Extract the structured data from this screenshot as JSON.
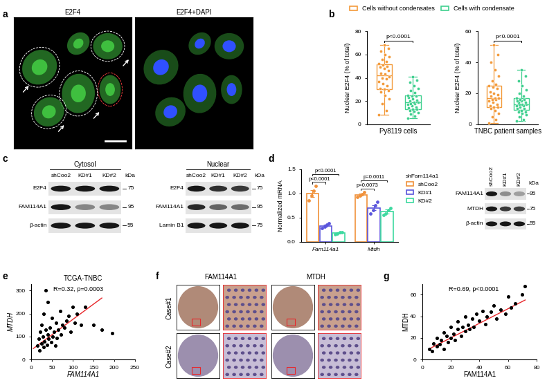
{
  "panel_labels": [
    "a",
    "b",
    "c",
    "d",
    "e",
    "f",
    "g"
  ],
  "panel_a": {
    "images": [
      "E2F4",
      "E2F4+DAPI"
    ]
  },
  "chart_data": [
    {
      "type": "box",
      "ylabel": "Nuclear E2F4 (% of total)",
      "xlabel": "Py8119 cells",
      "ylim": [
        0,
        80
      ],
      "yticks": [
        0,
        20,
        40,
        60,
        80
      ],
      "legend": "upper center",
      "annotation": "p<0.0001",
      "series": [
        {
          "name": "Cells without condensates",
          "color": "#f39a3a",
          "values": [
            8,
            12,
            18,
            22,
            25,
            28,
            29,
            30,
            31,
            33,
            35,
            37,
            39,
            40,
            41,
            43,
            44,
            46,
            48,
            49,
            50,
            51,
            52,
            54,
            56,
            58,
            60,
            63,
            65,
            68
          ]
        },
        {
          "name": "Cells with condensate",
          "color": "#3ecf8e",
          "values": [
            5,
            7,
            9,
            10,
            11,
            12,
            13,
            13,
            14,
            15,
            16,
            17,
            18,
            18,
            19,
            19,
            20,
            21,
            22,
            23,
            24,
            24,
            25,
            27,
            29,
            31,
            33,
            36,
            38,
            41
          ]
        }
      ]
    },
    {
      "type": "box",
      "ylabel": "Nuclear E2F4 (% of total)",
      "xlabel": "TNBC patient samples",
      "ylim": [
        0,
        60
      ],
      "yticks": [
        0,
        20,
        40,
        60
      ],
      "annotation": "p<0.0001",
      "series": [
        {
          "color": "#f39a3a",
          "values": [
            1,
            3,
            5,
            7,
            9,
            10,
            11,
            11,
            12,
            13,
            14,
            15,
            16,
            16,
            17,
            17,
            18,
            19,
            20,
            21,
            23,
            24,
            25,
            26,
            28,
            31,
            35,
            40,
            45,
            51
          ]
        },
        {
          "color": "#3ecf8e",
          "values": [
            2,
            3,
            5,
            6,
            7,
            8,
            8,
            9,
            10,
            10,
            11,
            12,
            12,
            13,
            13,
            13,
            14,
            14,
            15,
            15,
            16,
            16,
            17,
            18,
            20,
            22,
            25,
            28,
            31,
            35
          ]
        }
      ]
    },
    {
      "type": "bar",
      "ylabel": "Normalized mRNA",
      "categories": [
        "Fam114a1",
        "Mtdh"
      ],
      "ylim": [
        0,
        1.5
      ],
      "yticks": [
        {
          "value": 0,
          "label": "0.0"
        },
        {
          "value": 0.5,
          "label": "0.5"
        },
        {
          "value": 1.0,
          "label": "1.0"
        },
        {
          "value": 1.5,
          "label": "1.5"
        }
      ],
      "legend": "upper left",
      "legend_title": "shFam114a1",
      "series": [
        {
          "name": "shCoo2",
          "color": "#f0913a",
          "values": [
            1.0,
            0.97
          ],
          "errors": [
            0.07,
            0.02
          ],
          "points": [
            [
              0.85,
              0.95,
              1.05,
              1.15
            ],
            [
              0.93,
              0.95,
              0.98,
              1.02
            ]
          ]
        },
        {
          "name": "KD#1",
          "color": "#5a55dc",
          "values": [
            0.33,
            0.7
          ],
          "errors": [
            0.02,
            0.05
          ],
          "points": [
            [
              0.28,
              0.31,
              0.35,
              0.38
            ],
            [
              0.58,
              0.65,
              0.75,
              0.82
            ]
          ]
        },
        {
          "name": "KD#2",
          "color": "#3dd9a0",
          "values": [
            0.18,
            0.62
          ],
          "errors": [
            0.01,
            0.04
          ],
          "points": [
            [
              0.16,
              0.17,
              0.19,
              0.2
            ],
            [
              0.55,
              0.58,
              0.65,
              0.7
            ]
          ]
        }
      ],
      "comparisons": [
        {
          "category": "Fam114a1",
          "pair": [
            "shCoo2",
            "KD#1"
          ],
          "label": "p<0.0001"
        },
        {
          "category": "Fam114a1",
          "pair": [
            "shCoo2",
            "KD#2"
          ],
          "label": "p<0.0001"
        },
        {
          "category": "Mtdh",
          "pair": [
            "shCoo2",
            "KD#1"
          ],
          "label": "p=0.0073"
        },
        {
          "category": "Mtdh",
          "pair": [
            "shCoo2",
            "KD#2"
          ],
          "label": "p=0.0011"
        }
      ]
    },
    {
      "type": "scatter",
      "title": "TCGA-TNBC",
      "annotation": "R=0.32, p=0.0003",
      "xlabel": "FAM114A1",
      "ylabel": "MTDH",
      "x": [
        15,
        18,
        20,
        22,
        25,
        25,
        28,
        30,
        30,
        32,
        35,
        35,
        38,
        40,
        40,
        42,
        45,
        48,
        50,
        52,
        55,
        58,
        60,
        62,
        65,
        70,
        72,
        75,
        80,
        85,
        90,
        95,
        100,
        105,
        110,
        120,
        130,
        150,
        170,
        195
      ],
      "values": [
        60,
        90,
        40,
        120,
        70,
        150,
        100,
        55,
        200,
        80,
        130,
        300,
        65,
        110,
        250,
        90,
        140,
        75,
        180,
        100,
        120,
        60,
        160,
        95,
        130,
        210,
        110,
        150,
        140,
        170,
        190,
        120,
        230,
        160,
        200,
        150,
        230,
        150,
        130,
        115
      ],
      "fit": {
        "x": [
          5,
          170
        ],
        "values": [
          48,
          268
        ]
      },
      "xlim": [
        0,
        250
      ],
      "xticks": [
        0,
        50,
        100,
        150,
        200,
        250
      ],
      "ylim": [
        0,
        330
      ],
      "yticks": [
        0,
        100,
        200,
        300
      ]
    },
    {
      "type": "scatter",
      "annotation": "R=0.69, p<0.0001",
      "xlabel": "FAM114A1",
      "ylabel": "MTDH",
      "x": [
        5,
        7,
        8,
        10,
        10,
        12,
        13,
        15,
        15,
        17,
        18,
        20,
        20,
        22,
        23,
        25,
        25,
        27,
        28,
        30,
        30,
        32,
        33,
        35,
        36,
        38,
        40,
        42,
        44,
        45,
        48,
        50,
        52,
        55,
        58,
        60,
        62,
        65,
        70,
        72
      ],
      "values": [
        10,
        8,
        15,
        12,
        20,
        14,
        18,
        10,
        25,
        22,
        16,
        20,
        30,
        24,
        18,
        28,
        35,
        22,
        30,
        26,
        40,
        32,
        28,
        38,
        30,
        42,
        36,
        45,
        33,
        40,
        44,
        50,
        38,
        46,
        42,
        58,
        48,
        52,
        60,
        68
      ],
      "fit": {
        "x": [
          5,
          72
        ],
        "values": [
          10,
          55
        ]
      },
      "xlim": [
        0,
        80
      ],
      "xticks": [
        0,
        20,
        40,
        60,
        80
      ],
      "ylim": [
        0,
        70
      ],
      "yticks": [
        0,
        20,
        40,
        60
      ]
    }
  ],
  "panel_c": {
    "unit": "kDa",
    "blots": [
      {
        "title": "Cytosol",
        "lanes": [
          "shCoo2",
          "KD#1",
          "KD#2"
        ],
        "rows": [
          {
            "label": "E2F4",
            "kda": 75,
            "levels": [
              1,
              1,
              1
            ]
          },
          {
            "label": "FAM114A1",
            "kda": 95,
            "levels": [
              1,
              0.35,
              0.35
            ]
          },
          {
            "label": "β-actin",
            "kda": 55,
            "levels": [
              1,
              1,
              1
            ]
          }
        ]
      },
      {
        "title": "Nuclear",
        "lanes": [
          "shCoo2",
          "KD#1",
          "KD#2"
        ],
        "rows": [
          {
            "label": "E2F4",
            "kda": 75,
            "levels": [
              1,
              0.85,
              0.8
            ]
          },
          {
            "label": "FAM114A1",
            "kda": 95,
            "levels": [
              0.9,
              0.55,
              0.5
            ]
          },
          {
            "label": "Lamin B1",
            "kda": 75,
            "levels": [
              1,
              1,
              1
            ]
          }
        ]
      }
    ]
  },
  "panel_d_blot": {
    "unit": "kDa",
    "lanes": [
      "shCoo2",
      "KD#1",
      "KD#2"
    ],
    "rows": [
      {
        "label": "FAM114A1",
        "kda": 95,
        "levels": [
          1,
          0.3,
          0.2
        ]
      },
      {
        "label": "MTDH",
        "kda": 75,
        "levels": [
          1,
          0.8,
          0.75
        ]
      },
      {
        "label": "β-actin",
        "kda": 55,
        "levels": [
          1,
          1,
          1
        ]
      }
    ]
  },
  "panel_f": {
    "columns": [
      "FAM114A1",
      "MTDH"
    ],
    "rows": [
      "Case#1",
      "Case#2"
    ]
  }
}
